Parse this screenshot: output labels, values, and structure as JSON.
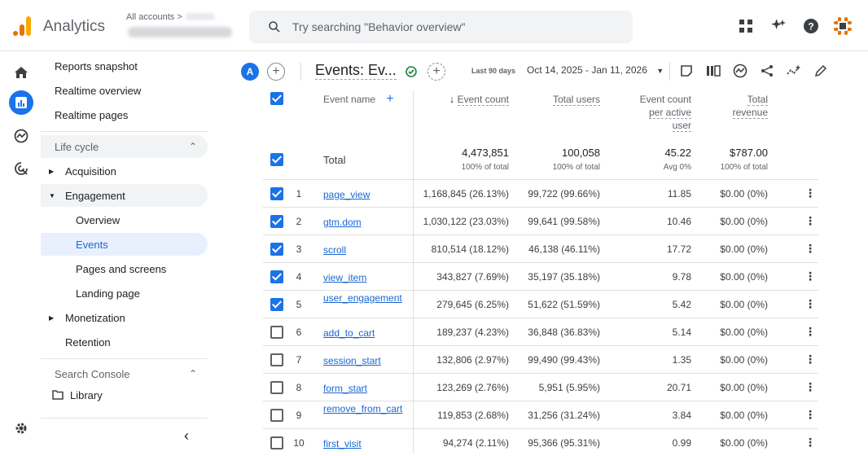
{
  "app": {
    "name": "Analytics",
    "account_label": "All accounts"
  },
  "search": {
    "placeholder": "Try searching \"Behavior overview\""
  },
  "nav": {
    "reports_snapshot": "Reports snapshot",
    "realtime_overview": "Realtime overview",
    "realtime_pages": "Realtime pages",
    "life_cycle": "Life cycle",
    "acquisition": "Acquisition",
    "engagement": "Engagement",
    "overview": "Overview",
    "events": "Events",
    "pages_and_screens": "Pages and screens",
    "landing_page": "Landing page",
    "monetization": "Monetization",
    "retention": "Retention",
    "search_console": "Search Console",
    "library": "Library"
  },
  "header": {
    "avatar_letter": "A",
    "title": "Events: Ev...",
    "date_label": "Last 90 days",
    "date_range": "Oct 14, 2025 - Jan 11, 2026"
  },
  "table": {
    "headers": {
      "event_name": "Event name",
      "event_count": "Event count",
      "total_users": "Total users",
      "per_user_1": "Event count",
      "per_user_2": "per active",
      "per_user_3": "user",
      "revenue_1": "Total",
      "revenue_2": "revenue"
    },
    "total": {
      "label": "Total",
      "event_count": "4,473,851",
      "event_count_sub": "100% of total",
      "total_users": "100,058",
      "total_users_sub": "100% of total",
      "per_user": "45.22",
      "per_user_sub": "Avg 0%",
      "revenue": "$787.00",
      "revenue_sub": "100% of total"
    },
    "rows": [
      {
        "n": "1",
        "name": "page_view",
        "count": "1,168,845 (26.13%)",
        "users": "99,722 (99.66%)",
        "per": "11.85",
        "rev": "$0.00 (0%)",
        "checked": true
      },
      {
        "n": "2",
        "name": "gtm.dom",
        "count": "1,030,122 (23.03%)",
        "users": "99,641 (99.58%)",
        "per": "10.46",
        "rev": "$0.00 (0%)",
        "checked": true
      },
      {
        "n": "3",
        "name": "scroll",
        "count": "810,514 (18.12%)",
        "users": "46,138 (46.11%)",
        "per": "17.72",
        "rev": "$0.00 (0%)",
        "checked": true
      },
      {
        "n": "4",
        "name": "view_item",
        "count": "343,827 (7.69%)",
        "users": "35,197 (35.18%)",
        "per": "9.78",
        "rev": "$0.00 (0%)",
        "checked": true
      },
      {
        "n": "5",
        "name": "user_engagement",
        "count": "279,645 (6.25%)",
        "users": "51,622 (51.59%)",
        "per": "5.42",
        "rev": "$0.00 (0%)",
        "checked": true
      },
      {
        "n": "6",
        "name": "add_to_cart",
        "count": "189,237 (4.23%)",
        "users": "36,848 (36.83%)",
        "per": "5.14",
        "rev": "$0.00 (0%)",
        "checked": false
      },
      {
        "n": "7",
        "name": "session_start",
        "count": "132,806 (2.97%)",
        "users": "99,490 (99.43%)",
        "per": "1.35",
        "rev": "$0.00 (0%)",
        "checked": false
      },
      {
        "n": "8",
        "name": "form_start",
        "count": "123,269 (2.76%)",
        "users": "5,951 (5.95%)",
        "per": "20.71",
        "rev": "$0.00 (0%)",
        "checked": false
      },
      {
        "n": "9",
        "name": "remove_from_cart",
        "count": "119,853 (2.68%)",
        "users": "31,256 (31.24%)",
        "per": "3.84",
        "rev": "$0.00 (0%)",
        "checked": false
      },
      {
        "n": "10",
        "name": "first_visit",
        "count": "94,274 (2.11%)",
        "users": "95,366 (95.31%)",
        "per": "0.99",
        "rev": "$0.00 (0%)",
        "checked": false
      }
    ]
  },
  "colors": {
    "accent": "#1a73e8",
    "brand_orange": "#f9ab00"
  }
}
